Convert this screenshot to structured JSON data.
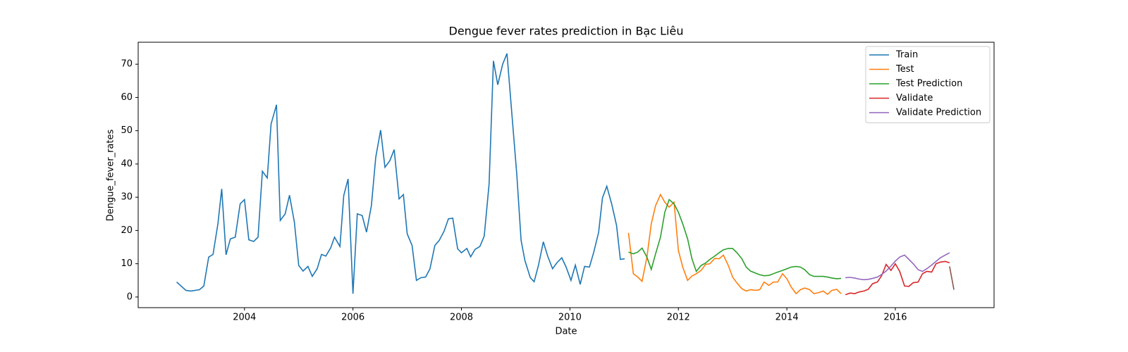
{
  "chart_data": {
    "type": "line",
    "title": "Dengue fever rates prediction in Bạc Liêu",
    "x_label": "Date",
    "y_label": "Dengue_fever_rates",
    "xlim": [
      2002.04,
      2017.82
    ],
    "ylim": [
      -3.2,
      76.6
    ],
    "xticks": [
      2004,
      2006,
      2008,
      2010,
      2012,
      2014,
      2016
    ],
    "yticks": [
      0,
      10,
      20,
      30,
      40,
      50,
      60,
      70
    ],
    "legend": "upper right",
    "series": [
      {
        "name": "Train",
        "color": "#1f77b4",
        "x": [
          2002.75,
          2002.92,
          2003.01,
          2003.17,
          2003.25,
          2003.34,
          2003.42,
          2003.51,
          2003.58,
          2003.66,
          2003.74,
          2003.83,
          2003.92,
          2004.0,
          2004.08,
          2004.17,
          2004.25,
          2004.33,
          2004.42,
          2004.49,
          2004.59,
          2004.66,
          2004.75,
          2004.83,
          2004.92,
          2005.0,
          2005.08,
          2005.17,
          2005.25,
          2005.34,
          2005.42,
          2005.5,
          2005.59,
          2005.66,
          2005.76,
          2005.83,
          2005.91,
          2006.0,
          2006.08,
          2006.17,
          2006.25,
          2006.34,
          2006.42,
          2006.51,
          2006.59,
          2006.68,
          2006.76,
          2006.85,
          2006.93,
          2007.0,
          2007.09,
          2007.17,
          2007.25,
          2007.34,
          2007.42,
          2007.51,
          2007.59,
          2007.68,
          2007.76,
          2007.84,
          2007.93,
          2008.0,
          2008.1,
          2008.17,
          2008.25,
          2008.34,
          2008.42,
          2008.51,
          2008.59,
          2008.67,
          2008.76,
          2008.84,
          2008.93,
          2009.02,
          2009.1,
          2009.17,
          2009.27,
          2009.34,
          2009.42,
          2009.51,
          2009.59,
          2009.68,
          2009.76,
          2009.85,
          2009.93,
          2010.02,
          2010.1,
          2010.19,
          2010.27,
          2010.36,
          2010.44,
          2010.53,
          2010.6,
          2010.68,
          2010.77,
          2010.86,
          2010.93,
          2011.01
        ],
        "values": [
          4.5,
          2,
          1.8,
          2.2,
          3.3,
          12,
          12.8,
          22,
          32.5,
          12.7,
          17.5,
          18,
          28,
          29.3,
          17.2,
          16.7,
          18,
          37.8,
          35.8,
          52,
          57.8,
          23,
          25,
          30.6,
          22.5,
          9.5,
          7.8,
          9.2,
          6.2,
          8.5,
          12.8,
          12.3,
          14.8,
          18,
          15.2,
          30.5,
          35.5,
          1,
          25,
          24.5,
          19.5,
          27.5,
          42,
          50.2,
          39,
          41,
          44.3,
          29.5,
          30.8,
          19,
          15.5,
          5,
          5.8,
          6,
          8.5,
          15.5,
          17,
          19.8,
          23.5,
          23.7,
          14.5,
          13.3,
          14.6,
          12.1,
          14.3,
          15.2,
          18.3,
          34,
          71,
          63.8,
          70,
          73.2,
          55,
          37,
          17,
          11,
          5.8,
          4.6,
          9.5,
          16.6,
          12.3,
          8.5,
          10.3,
          11.8,
          9,
          5,
          9.6,
          3.8,
          9.2,
          9,
          13.5,
          19.5,
          29.8,
          33.3,
          28,
          21.5,
          11.3,
          11.5
        ]
      },
      {
        "name": "Test",
        "color": "#ff7f0e",
        "x": [
          2011.08,
          2011.17,
          2011.25,
          2011.33,
          2011.42,
          2011.5,
          2011.58,
          2011.67,
          2011.75,
          2011.83,
          2011.92,
          2012,
          2012.08,
          2012.17,
          2012.25,
          2012.33,
          2012.42,
          2012.5,
          2012.58,
          2012.67,
          2012.75,
          2012.83,
          2012.92,
          2013,
          2013.08,
          2013.17,
          2013.25,
          2013.33,
          2013.42,
          2013.5,
          2013.58,
          2013.67,
          2013.75,
          2013.83,
          2013.92,
          2014,
          2014.08,
          2014.17,
          2014.25,
          2014.33,
          2014.42,
          2014.5,
          2014.58,
          2014.67,
          2014.75,
          2014.83,
          2014.92,
          2015
        ],
        "values": [
          19.3,
          7,
          6,
          4.7,
          12,
          22,
          27.5,
          30.8,
          28.5,
          27,
          28.5,
          14,
          9,
          5,
          6.3,
          7,
          8,
          9.8,
          10,
          11.6,
          11.5,
          12.6,
          9.5,
          6,
          4.2,
          2.5,
          1.8,
          2.2,
          2,
          2.2,
          4.5,
          3.5,
          4.5,
          4.5,
          7,
          5.5,
          3,
          1,
          2.2,
          2.7,
          2.2,
          1,
          1.3,
          1.8,
          0.8,
          2,
          2.3,
          1
        ]
      },
      {
        "name": "Test Prediction",
        "color": "#2ca02c",
        "x": [
          2011.08,
          2011.17,
          2011.25,
          2011.33,
          2011.42,
          2011.5,
          2011.58,
          2011.67,
          2011.75,
          2011.83,
          2011.92,
          2012,
          2012.08,
          2012.17,
          2012.25,
          2012.33,
          2012.42,
          2012.5,
          2012.58,
          2012.67,
          2012.75,
          2012.83,
          2012.92,
          2013,
          2013.08,
          2013.17,
          2013.25,
          2013.33,
          2013.42,
          2013.5,
          2013.58,
          2013.67,
          2013.75,
          2013.83,
          2013.92,
          2014,
          2014.08,
          2014.17,
          2014.25,
          2014.33,
          2014.42,
          2014.5,
          2014.58,
          2014.67,
          2014.75,
          2014.83,
          2014.92,
          2015
        ],
        "values": [
          13.5,
          13,
          13.5,
          14.7,
          12,
          8.3,
          13,
          18,
          25.5,
          29.3,
          28,
          25.5,
          22,
          17.5,
          11.5,
          7.7,
          9.5,
          10.2,
          11.3,
          12.3,
          13.3,
          14.2,
          14.6,
          14.6,
          13.3,
          11.5,
          9,
          7.8,
          7.2,
          6.7,
          6.4,
          6.5,
          7,
          7.5,
          8,
          8.5,
          9,
          9.2,
          9,
          8.2,
          6.7,
          6.2,
          6.2,
          6.2,
          6,
          5.7,
          5.5,
          5.6
        ]
      },
      {
        "name": "Validate",
        "color": "#d62728",
        "x": [
          2015.08,
          2015.17,
          2015.25,
          2015.33,
          2015.42,
          2015.5,
          2015.58,
          2015.67,
          2015.75,
          2015.83,
          2015.92,
          2016,
          2016.08,
          2016.17,
          2016.25,
          2016.33,
          2016.42,
          2016.5,
          2016.58,
          2016.67,
          2016.75,
          2016.83,
          2016.92,
          2017
        ],
        "values": [
          0.7,
          1.2,
          1,
          1.5,
          1.8,
          2.3,
          4,
          4.5,
          6.5,
          9.8,
          8,
          10,
          7.7,
          3.3,
          3.2,
          4.3,
          4.5,
          7,
          7.7,
          7.5,
          10,
          10.5,
          10.7,
          10.3
        ]
      },
      {
        "name": "Validate Prediction",
        "color": "#9467bd",
        "x": [
          2015.08,
          2015.17,
          2015.25,
          2015.33,
          2015.42,
          2015.5,
          2015.58,
          2015.67,
          2015.75,
          2015.83,
          2015.92,
          2016,
          2016.08,
          2016.17,
          2016.25,
          2016.33,
          2016.42,
          2016.5,
          2016.58,
          2016.67,
          2016.75,
          2016.83,
          2016.92,
          2017
        ],
        "values": [
          5.8,
          5.9,
          5.7,
          5.4,
          5.2,
          5.3,
          5.6,
          6,
          6.8,
          7.8,
          9.3,
          10.8,
          12,
          12.6,
          11.3,
          10,
          8.2,
          7.7,
          8.5,
          9.6,
          10.7,
          11.8,
          12.6,
          13.3
        ]
      },
      {
        "color": "#8c564b",
        "x": [
          2017.0,
          2017.08
        ],
        "values": [
          9.2,
          2.2
        ]
      }
    ]
  }
}
